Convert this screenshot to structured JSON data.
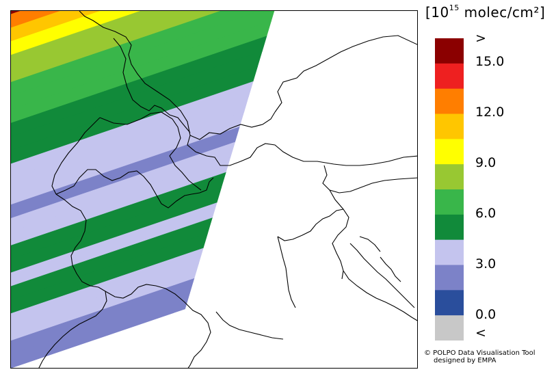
{
  "legend": {
    "unit_exp": "15",
    "unit_text": "molec/cm²",
    "colors": [
      "#c8c8c8",
      "#2a4e9c",
      "#7c82c8",
      "#c4c4ee",
      "#118a3a",
      "#39b64a",
      "#98c832",
      "#ffff00",
      "#ffc600",
      "#ff7e00",
      "#ee2020",
      "#8b0000"
    ],
    "labels": [
      ">",
      "15.0",
      "12.0",
      "9.0",
      "6.0",
      "3.0",
      "0.0",
      "<"
    ]
  },
  "credit": {
    "line1": "© POLPO Data Visualisation Tool",
    "line2": "designed by EMPA"
  }
}
